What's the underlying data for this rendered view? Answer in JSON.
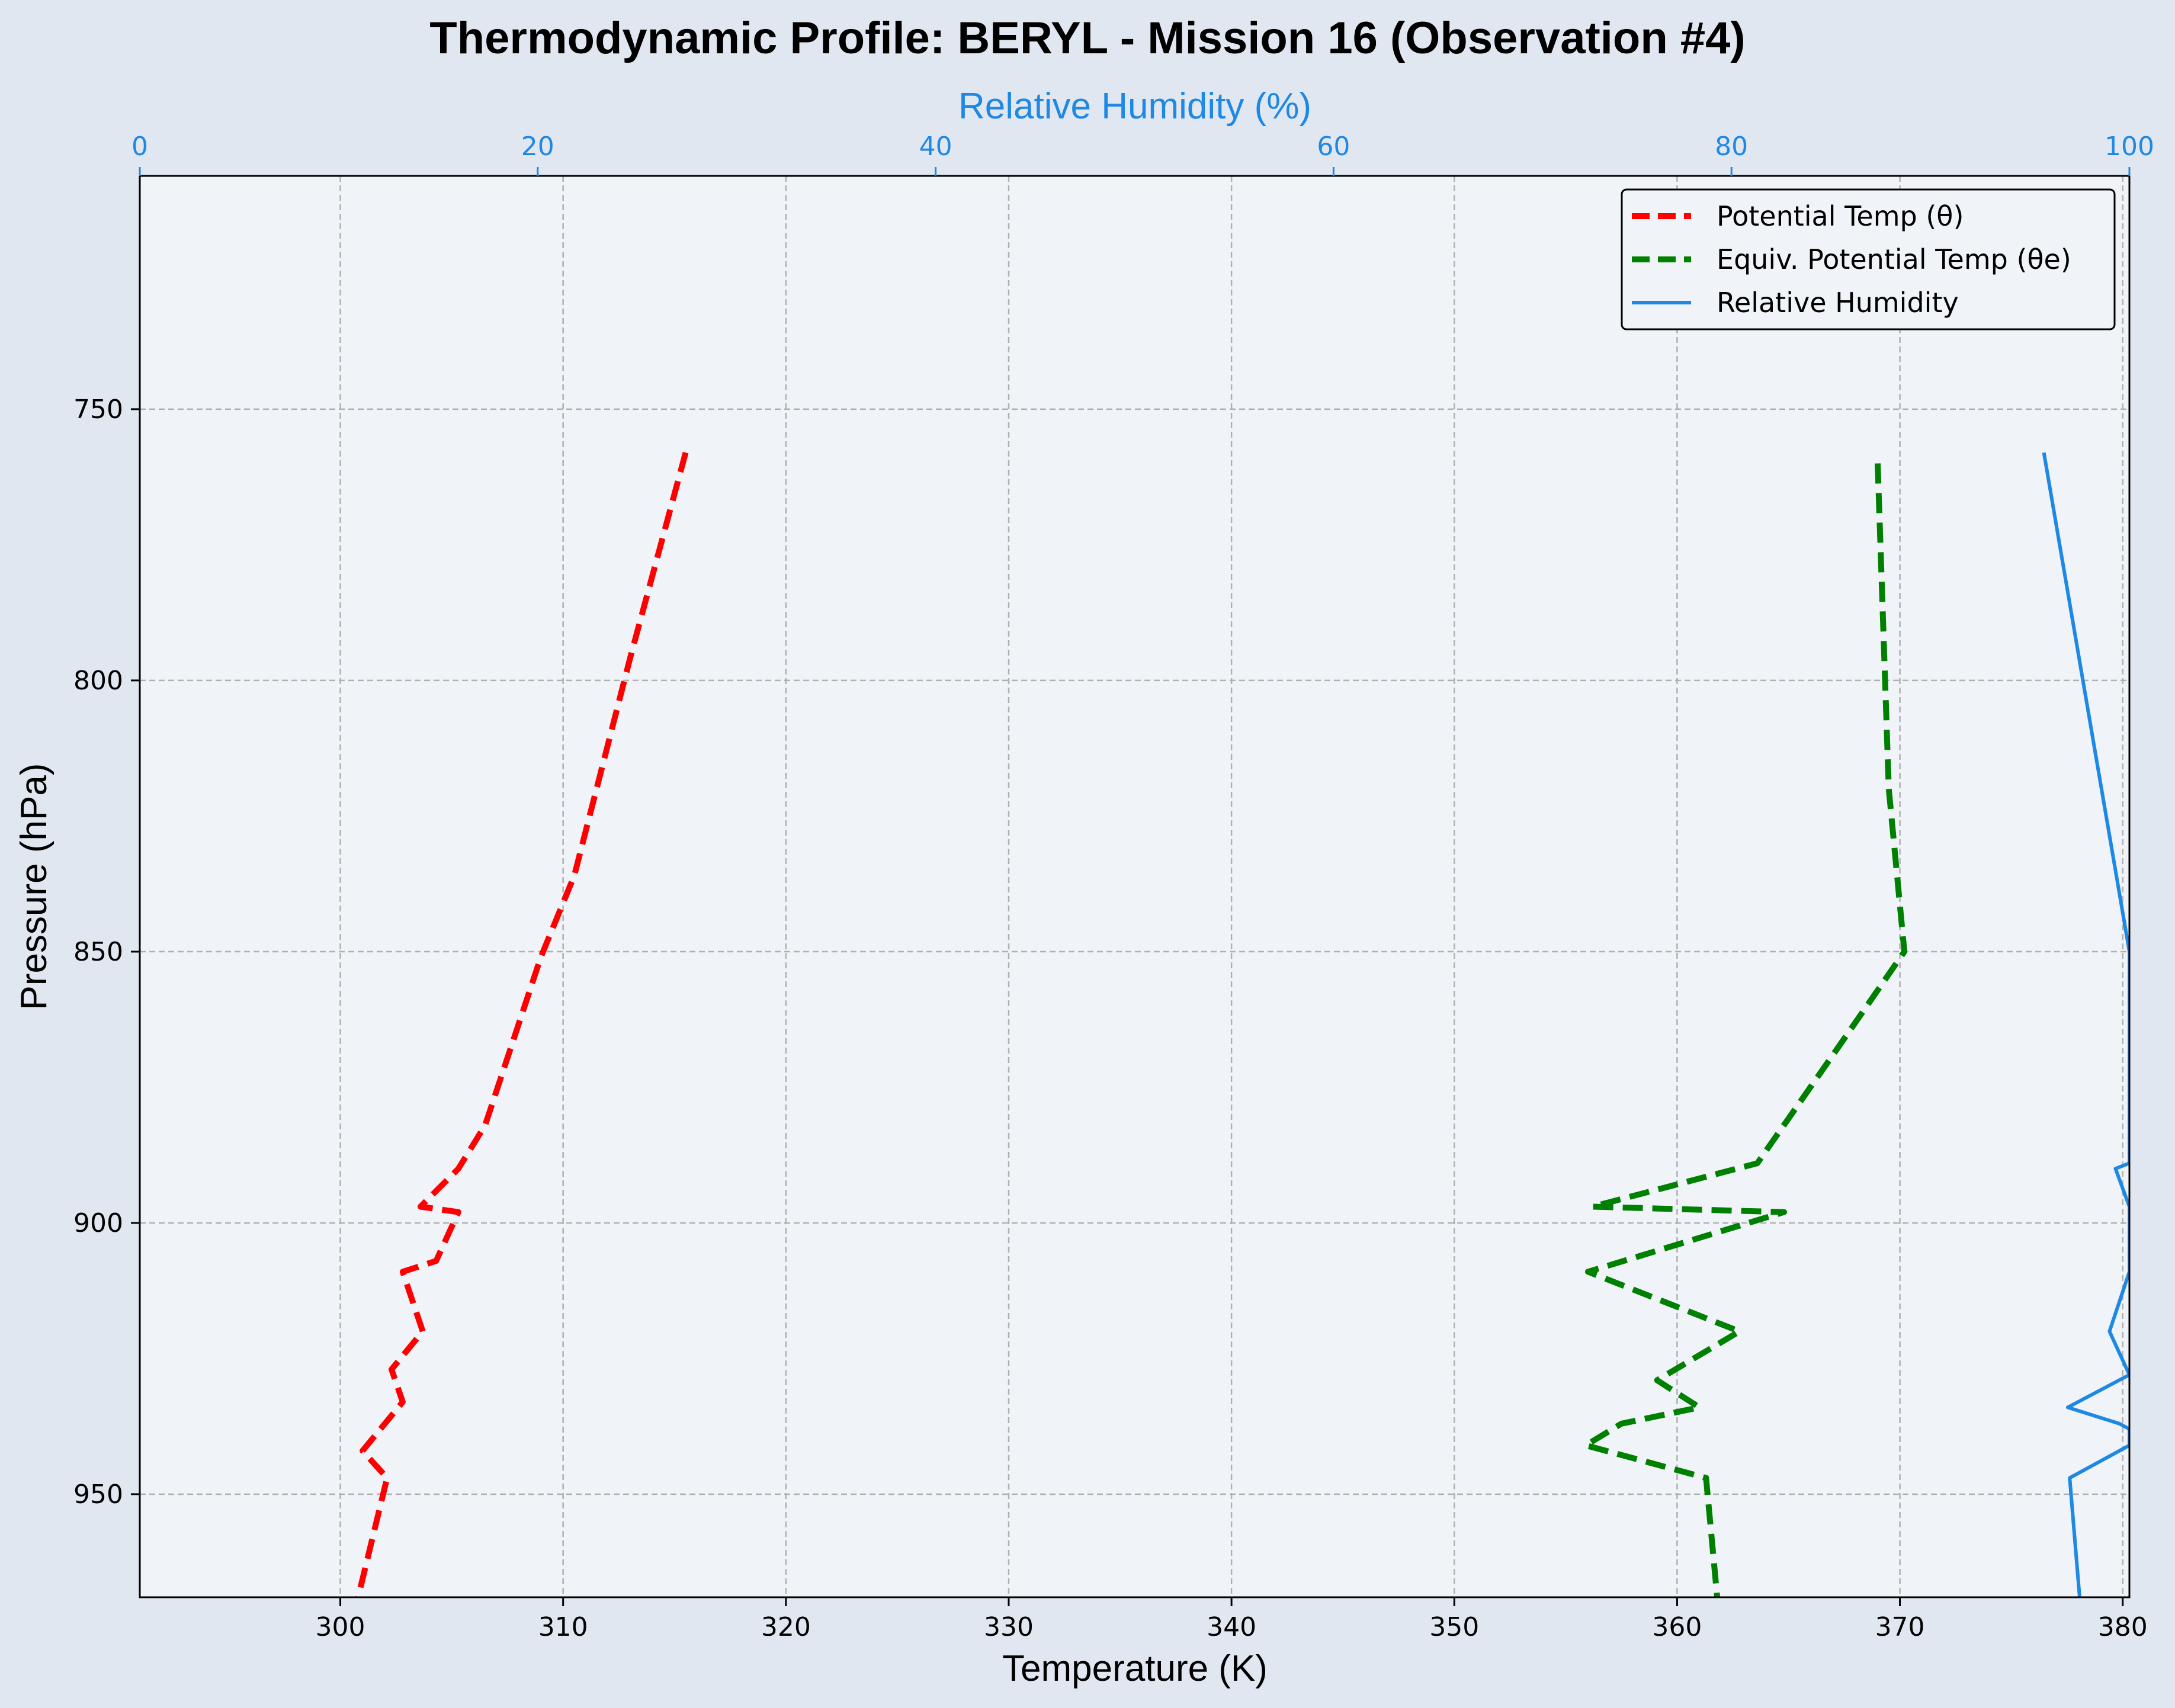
{
  "chart_data": {
    "type": "line",
    "title": "Thermodynamic Profile:  BERYL - Mission 16 (Observation #4)",
    "xlabel": "Temperature (K)",
    "ylabel": "Pressure (hPa)",
    "x2label": "Relative Humidity (%)",
    "xlim": [
      291.0,
      380.3
    ],
    "x2lim": [
      0,
      100
    ],
    "ylim": [
      969,
      707
    ],
    "y_inverted": true,
    "x_ticks": [
      300,
      310,
      320,
      330,
      340,
      350,
      360,
      370,
      380
    ],
    "x2_ticks": [
      0,
      20,
      40,
      60,
      80,
      100
    ],
    "y_ticks": [
      750,
      800,
      850,
      900,
      950
    ],
    "grid": true,
    "legend_position": "top-right",
    "colors": {
      "background": "#e1e7f0",
      "plot_background": "#f0f4f9",
      "theta": "#ff0000",
      "theta_e": "#008000",
      "rh": "#1e88e5",
      "rh_axis": "#1e88e5"
    },
    "series": [
      {
        "name": "Potential Temp (θ)",
        "axis": "temperature",
        "style": "dashed",
        "color": "#ff0000",
        "x": [
          315.5,
          313.0,
          310.5,
          309.0,
          306.5,
          305.3,
          303.6,
          305.3,
          304.3,
          302.8,
          303.7,
          302.3,
          302.8,
          301.0,
          302.1,
          300.8
        ],
        "y": [
          758,
          796,
          836,
          851,
          882,
          890,
          897,
          898,
          907,
          909,
          920,
          927,
          933,
          942,
          947,
          969
        ]
      },
      {
        "name": "Equiv. Potential Temp (θe)",
        "axis": "temperature",
        "style": "dashed",
        "color": "#008000",
        "x": [
          369.0,
          369.5,
          370.2,
          367.0,
          363.6,
          356.2,
          364.8,
          356.0,
          362.8,
          359.1,
          361.0,
          357.5,
          355.9,
          361.3,
          361.8
        ],
        "y": [
          760,
          820,
          850,
          869,
          889,
          897,
          898,
          909,
          920,
          929,
          934,
          937,
          941,
          947,
          969
        ]
      },
      {
        "name": "Relative Humidity",
        "axis": "relative_humidity",
        "style": "solid",
        "color": "#1e88e5",
        "x": [
          95.7,
          100.0,
          100.0,
          99.3,
          100.0,
          100.0,
          99.0,
          100.0,
          96.9,
          99.5,
          100.0,
          100.0,
          97.0,
          97.5
        ],
        "y": [
          758,
          850,
          889,
          890,
          897,
          909,
          920,
          928,
          934,
          937,
          938,
          941,
          947,
          969
        ]
      }
    ]
  }
}
